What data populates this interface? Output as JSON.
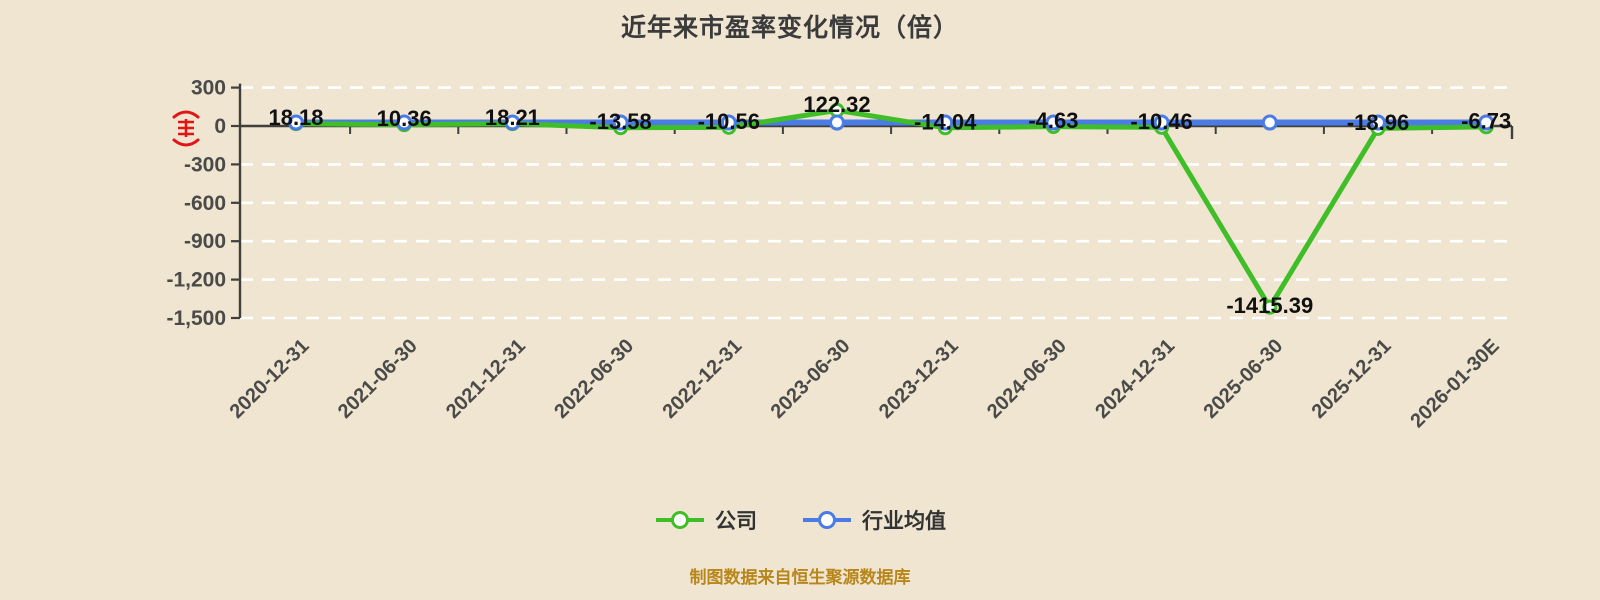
{
  "title": "近年来市盈率变化情况（倍）",
  "footer": {
    "source_note": "制图数据来自恒生聚源数据库"
  },
  "legend": {
    "items": [
      {
        "label": "公司",
        "color": "#3FBE28"
      },
      {
        "label": "行业均值",
        "color": "#4B7CE5"
      }
    ]
  },
  "icons": {
    "red_seal": "red-seal-icon"
  },
  "colors": {
    "background": "#EFE5D1",
    "company_line": "#3FBE28",
    "industry_line": "#4B7CE5",
    "grid_line": "#FFFFFF",
    "axis_line": "#3F3F3D",
    "axis_text": "#4A4A48",
    "data_label": "#101010",
    "seal_red": "#E21414",
    "source_note": "#B8861B"
  },
  "chart_data": {
    "type": "line",
    "title": "近年来市盈率变化情况（倍）",
    "categories": [
      "2020-12-31",
      "2021-06-30",
      "2021-12-31",
      "2022-06-30",
      "2022-12-31",
      "2023-06-30",
      "2023-12-31",
      "2024-06-30",
      "2024-12-31",
      "2025-06-30",
      "2025-12-31",
      "2026-01-30E"
    ],
    "series": [
      {
        "name": "公司",
        "color": "#3FBE28",
        "values": [
          18.18,
          10.36,
          18.21,
          -13.58,
          -10.56,
          122.32,
          -14.04,
          -4.63,
          -10.46,
          -1415.39,
          -18.96,
          -6.73
        ],
        "labels_shown": true
      },
      {
        "name": "行业均值",
        "color": "#4B7CE5",
        "labels_shown": false,
        "note": "flat unlabeled line just above zero",
        "approx_flat_value": 27
      }
    ],
    "ylim": [
      -1500,
      300
    ],
    "ytick_labels": [
      "300",
      "0",
      "-300",
      "-600",
      "-900",
      "-1,200",
      "-1,500"
    ],
    "ytick_values": [
      300,
      0,
      -300,
      -600,
      -900,
      -1200,
      -1500
    ],
    "xlabel": "",
    "ylabel": "",
    "grid": "horizontal white dashed lines",
    "legend_position": "bottom"
  }
}
